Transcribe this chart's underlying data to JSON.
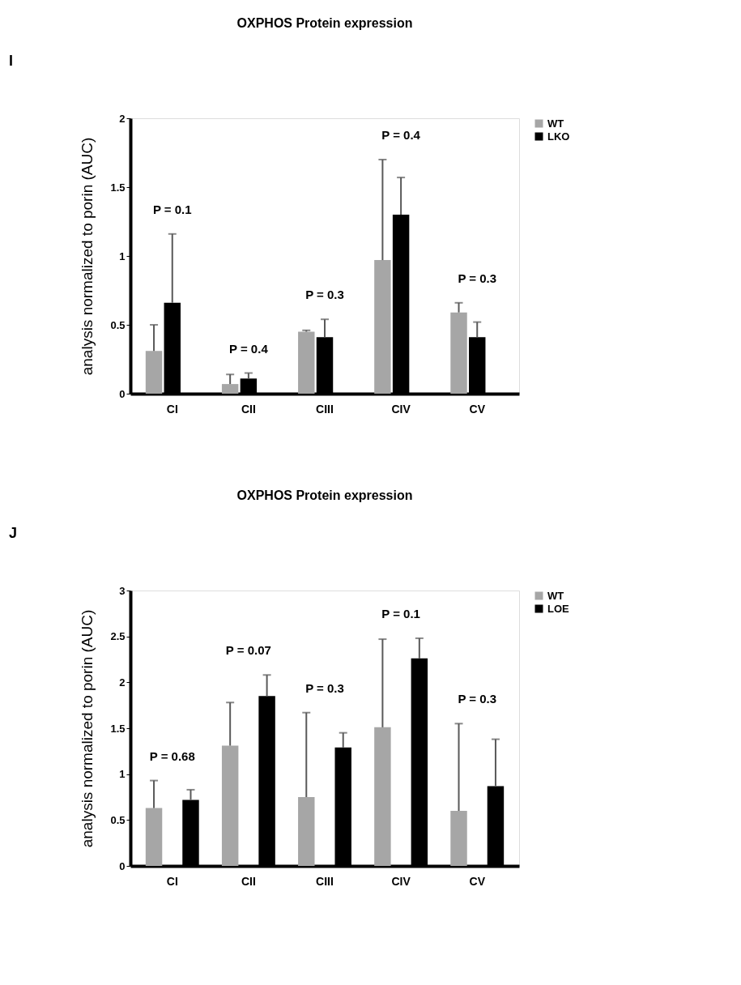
{
  "chart_data": [
    {
      "type": "bar",
      "title": "OXPHOS Protein expression",
      "ylabel": "analysis normalized to porin (AUC)",
      "categories": [
        "CI",
        "CII",
        "CIII",
        "CIV",
        "CV"
      ],
      "series": [
        {
          "name": "WT",
          "color": "#a6a6a6",
          "values": [
            0.31,
            0.07,
            0.45,
            0.97,
            0.59
          ],
          "errors": [
            [
              0.31,
              0.5
            ],
            [
              0.07,
              0.14
            ],
            [
              0.45,
              0.46
            ],
            [
              0.97,
              1.7
            ],
            [
              0.59,
              0.66
            ]
          ]
        },
        {
          "name": "LKO",
          "color": "#000000",
          "values": [
            0.66,
            0.11,
            0.41,
            1.3,
            0.41
          ],
          "errors": [
            [
              0.66,
              1.16
            ],
            [
              0.11,
              0.15
            ],
            [
              0.41,
              0.54
            ],
            [
              1.3,
              1.57
            ],
            [
              0.41,
              0.52
            ]
          ]
        }
      ],
      "ylim": [
        0,
        2
      ],
      "yticks": [
        0,
        0.5,
        1,
        1.5,
        2
      ],
      "grid": false,
      "legend": "top right",
      "annotations": [
        "I",
        "P = 0.1",
        "P = 0.4",
        "P = 0.3",
        "P = 0.4",
        "P = 0.3"
      ]
    },
    {
      "type": "bar",
      "title": "OXPHOS Protein expression",
      "ylabel": "analysis normalized to porin (AUC)",
      "categories": [
        "CI",
        "CII",
        "CIII",
        "CIV",
        "CV"
      ],
      "series": [
        {
          "name": "WT",
          "color": "#a6a6a6",
          "values": [
            0.63,
            1.31,
            0.75,
            1.51,
            0.6
          ],
          "errors": [
            [
              0.63,
              0.93
            ],
            [
              1.31,
              1.78
            ],
            [
              0.75,
              1.67
            ],
            [
              1.51,
              2.47
            ],
            [
              0.6,
              1.55
            ]
          ]
        },
        {
          "name": "LOE",
          "color": "#000000",
          "values": [
            0.72,
            1.85,
            1.29,
            2.26,
            0.87
          ],
          "errors": [
            [
              0.72,
              0.83
            ],
            [
              1.85,
              2.08
            ],
            [
              1.29,
              1.45
            ],
            [
              2.26,
              2.48
            ],
            [
              0.87,
              1.38
            ]
          ]
        }
      ],
      "ylim": [
        0,
        3
      ],
      "yticks": [
        0,
        0.5,
        1,
        1.5,
        2,
        2.5,
        3
      ],
      "grid": false,
      "legend": "top right",
      "annotations": [
        "J",
        "P = 0.68",
        "P = 0.07",
        "P = 0.3",
        "P = 0.1",
        "P = 0.3"
      ]
    }
  ]
}
